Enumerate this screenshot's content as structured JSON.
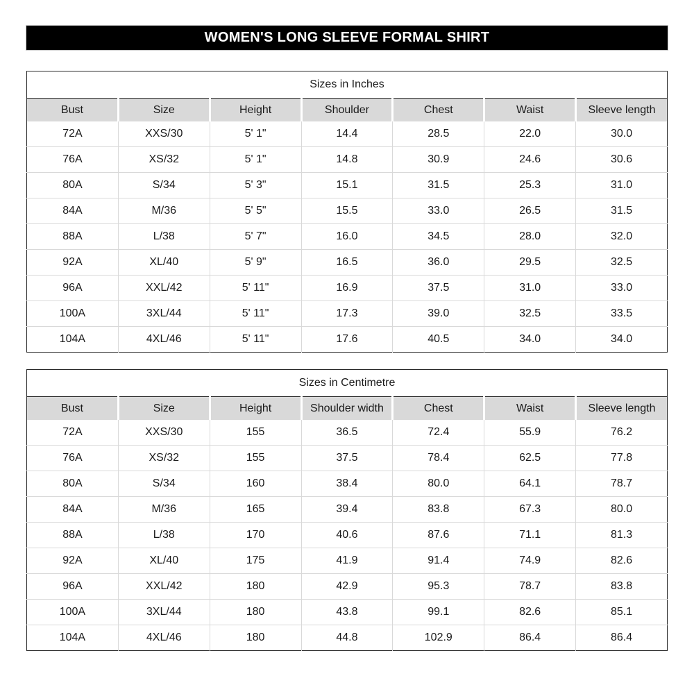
{
  "banner": {
    "title": "WOMEN'S LONG SLEEVE FORMAL SHIRT"
  },
  "colors": {
    "banner_bg": "#000000",
    "banner_text": "#ffffff",
    "header_bg": "#d9d9d9",
    "grid_line": "#d9d9d9",
    "table_border": "#262626",
    "page_bg": "#ffffff"
  },
  "tables": [
    {
      "title": "Sizes in Inches",
      "columns": [
        "Bust",
        "Size",
        "Height",
        "Shoulder",
        "Chest",
        "Waist",
        "Sleeve length"
      ],
      "rows": [
        [
          "72A",
          "XXS/30",
          "5' 1\"",
          "14.4",
          "28.5",
          "22.0",
          "30.0"
        ],
        [
          "76A",
          "XS/32",
          "5' 1\"",
          "14.8",
          "30.9",
          "24.6",
          "30.6"
        ],
        [
          "80A",
          "S/34",
          "5' 3\"",
          "15.1",
          "31.5",
          "25.3",
          "31.0"
        ],
        [
          "84A",
          "M/36",
          "5' 5\"",
          "15.5",
          "33.0",
          "26.5",
          "31.5"
        ],
        [
          "88A",
          "L/38",
          "5' 7\"",
          "16.0",
          "34.5",
          "28.0",
          "32.0"
        ],
        [
          "92A",
          "XL/40",
          "5' 9\"",
          "16.5",
          "36.0",
          "29.5",
          "32.5"
        ],
        [
          "96A",
          "XXL/42",
          "5' 11\"",
          "16.9",
          "37.5",
          "31.0",
          "33.0"
        ],
        [
          "100A",
          "3XL/44",
          "5' 11\"",
          "17.3",
          "39.0",
          "32.5",
          "33.5"
        ],
        [
          "104A",
          "4XL/46",
          "5' 11\"",
          "17.6",
          "40.5",
          "34.0",
          "34.0"
        ]
      ]
    },
    {
      "title": "Sizes in Centimetre",
      "columns": [
        "Bust",
        "Size",
        "Height",
        "Shoulder width",
        "Chest",
        "Waist",
        "Sleeve length"
      ],
      "rows": [
        [
          "72A",
          "XXS/30",
          "155",
          "36.5",
          "72.4",
          "55.9",
          "76.2"
        ],
        [
          "76A",
          "XS/32",
          "155",
          "37.5",
          "78.4",
          "62.5",
          "77.8"
        ],
        [
          "80A",
          "S/34",
          "160",
          "38.4",
          "80.0",
          "64.1",
          "78.7"
        ],
        [
          "84A",
          "M/36",
          "165",
          "39.4",
          "83.8",
          "67.3",
          "80.0"
        ],
        [
          "88A",
          "L/38",
          "170",
          "40.6",
          "87.6",
          "71.1",
          "81.3"
        ],
        [
          "92A",
          "XL/40",
          "175",
          "41.9",
          "91.4",
          "74.9",
          "82.6"
        ],
        [
          "96A",
          "XXL/42",
          "180",
          "42.9",
          "95.3",
          "78.7",
          "83.8"
        ],
        [
          "100A",
          "3XL/44",
          "180",
          "43.8",
          "99.1",
          "82.6",
          "85.1"
        ],
        [
          "104A",
          "4XL/46",
          "180",
          "44.8",
          "102.9",
          "86.4",
          "86.4"
        ]
      ]
    }
  ]
}
